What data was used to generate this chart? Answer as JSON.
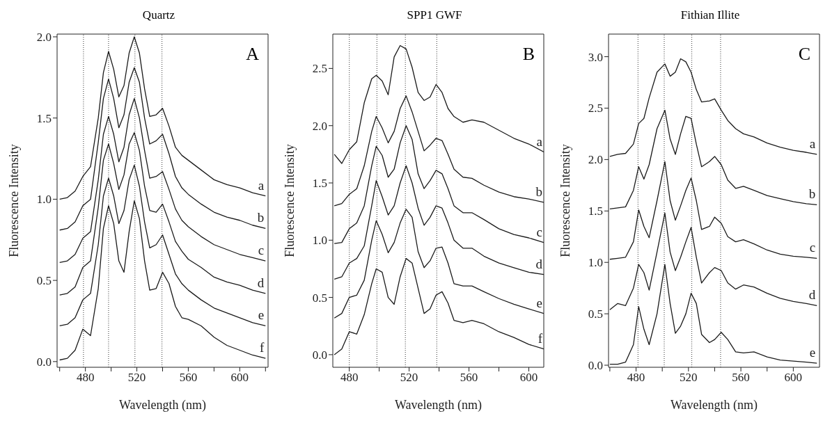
{
  "chart_data": [
    {
      "type": "line",
      "title": "Quartz",
      "xlabel": "Wavelength (nm)",
      "ylabel": "Fluorescence Intensity",
      "annotations": [
        "A"
      ],
      "xlim": [
        458,
        622
      ],
      "xticks": [
        {
          "value": 460,
          "label": null
        },
        480,
        {
          "value": 500,
          "label": null
        },
        520,
        {
          "value": 540,
          "label": null
        },
        560,
        {
          "value": 580,
          "label": null
        },
        600,
        {
          "value": 620,
          "label": null
        }
      ],
      "ylim": [
        -0.035,
        2.017
      ],
      "yticks": [
        {
          "value": 0,
          "label": "0.0"
        },
        {
          "value": 0.5,
          "label": "0.5"
        },
        {
          "value": 1,
          "label": "1.0"
        },
        {
          "value": 1.5,
          "label": "1.5"
        },
        {
          "value": 2,
          "label": "2.0"
        }
      ],
      "ref_lines": [
        {
          "axis": "x",
          "value": 478.5,
          "color": "#555555",
          "line_style": "dotted"
        },
        {
          "axis": "x",
          "value": 498,
          "color": "#555555",
          "line_style": "dotted"
        },
        {
          "axis": "x",
          "value": 518.5,
          "color": "#555555",
          "line_style": "dotted"
        },
        {
          "axis": "x",
          "value": 539.5,
          "color": "#555555",
          "line_style": "dotted"
        }
      ],
      "x": [
        460,
        466,
        472,
        478,
        484,
        490,
        494,
        498,
        502,
        506,
        510,
        514,
        518,
        522,
        526,
        530,
        535,
        540,
        545,
        550,
        555,
        560,
        570,
        580,
        590,
        600,
        610,
        620
      ],
      "series": [
        {
          "name": "a",
          "color": "#1a1a1a",
          "values": [
            1.0,
            1.01,
            1.05,
            1.14,
            1.2,
            1.5,
            1.78,
            1.91,
            1.8,
            1.63,
            1.7,
            1.9,
            2.0,
            1.9,
            1.68,
            1.51,
            1.52,
            1.56,
            1.45,
            1.32,
            1.27,
            1.24,
            1.18,
            1.12,
            1.09,
            1.07,
            1.04,
            1.02
          ]
        },
        {
          "name": "b",
          "color": "#1a1a1a",
          "values": [
            0.81,
            0.82,
            0.86,
            0.96,
            1.0,
            1.35,
            1.62,
            1.74,
            1.62,
            1.44,
            1.52,
            1.72,
            1.81,
            1.72,
            1.5,
            1.34,
            1.36,
            1.4,
            1.28,
            1.14,
            1.07,
            1.03,
            0.97,
            0.92,
            0.89,
            0.87,
            0.84,
            0.82
          ]
        },
        {
          "name": "c",
          "color": "#1a1a1a",
          "values": [
            0.61,
            0.62,
            0.66,
            0.76,
            0.8,
            1.12,
            1.4,
            1.51,
            1.4,
            1.23,
            1.32,
            1.52,
            1.62,
            1.5,
            1.3,
            1.13,
            1.14,
            1.17,
            1.06,
            0.94,
            0.87,
            0.83,
            0.77,
            0.72,
            0.69,
            0.66,
            0.64,
            0.62
          ]
        },
        {
          "name": "d",
          "color": "#1a1a1a",
          "values": [
            0.41,
            0.42,
            0.46,
            0.58,
            0.62,
            0.95,
            1.24,
            1.34,
            1.22,
            1.06,
            1.15,
            1.34,
            1.41,
            1.3,
            1.08,
            0.93,
            0.92,
            0.97,
            0.86,
            0.74,
            0.68,
            0.63,
            0.58,
            0.52,
            0.49,
            0.47,
            0.44,
            0.42
          ]
        },
        {
          "name": "e",
          "color": "#1a1a1a",
          "values": [
            0.22,
            0.23,
            0.27,
            0.38,
            0.42,
            0.72,
            1.02,
            1.13,
            1.02,
            0.85,
            0.93,
            1.12,
            1.21,
            1.08,
            0.86,
            0.7,
            0.72,
            0.78,
            0.66,
            0.54,
            0.48,
            0.44,
            0.38,
            0.33,
            0.3,
            0.27,
            0.24,
            0.22
          ]
        },
        {
          "name": "f",
          "color": "#1a1a1a",
          "values": [
            0.01,
            0.02,
            0.07,
            0.2,
            0.16,
            0.45,
            0.82,
            0.96,
            0.85,
            0.62,
            0.55,
            0.8,
            0.99,
            0.88,
            0.62,
            0.44,
            0.45,
            0.55,
            0.48,
            0.34,
            0.27,
            0.26,
            0.22,
            0.15,
            0.1,
            0.07,
            0.04,
            0.02
          ]
        }
      ]
    },
    {
      "type": "line",
      "title": "SPP1 GWF",
      "xlabel": "Wavelength (nm)",
      "ylabel": "Fluorescence Intensity",
      "annotations": [
        "B"
      ],
      "xlim": [
        469,
        610
      ],
      "xticks": [
        480,
        {
          "value": 500,
          "label": null
        },
        520,
        {
          "value": 540,
          "label": null
        },
        560,
        {
          "value": 580,
          "label": null
        },
        600
      ],
      "ylim": [
        -0.11,
        2.8
      ],
      "yticks": [
        {
          "value": 0,
          "label": "0.0"
        },
        {
          "value": 0.5,
          "label": "0.5"
        },
        {
          "value": 1,
          "label": "1.0"
        },
        {
          "value": 1.5,
          "label": "1.5"
        },
        {
          "value": 2,
          "label": "2.0"
        },
        {
          "value": 2.5,
          "label": "2.5"
        }
      ],
      "ref_lines": [
        {
          "axis": "x",
          "value": 480,
          "color": "#555555",
          "line_style": "dotted"
        },
        {
          "axis": "x",
          "value": 498.5,
          "color": "#555555",
          "line_style": "dotted"
        },
        {
          "axis": "x",
          "value": 517.5,
          "color": "#555555",
          "line_style": "dotted"
        },
        {
          "axis": "x",
          "value": 538.5,
          "color": "#555555",
          "line_style": "dotted"
        }
      ],
      "x": [
        470,
        475,
        480,
        485,
        490,
        495,
        498,
        502,
        506,
        510,
        514,
        518,
        522,
        526,
        530,
        534,
        538,
        542,
        546,
        550,
        556,
        562,
        570,
        580,
        590,
        600,
        610
      ],
      "series": [
        {
          "name": "a",
          "color": "#1a1a1a",
          "values": [
            1.75,
            1.67,
            1.79,
            1.86,
            2.2,
            2.41,
            2.44,
            2.39,
            2.27,
            2.6,
            2.7,
            2.67,
            2.51,
            2.29,
            2.22,
            2.25,
            2.36,
            2.29,
            2.15,
            2.08,
            2.03,
            2.05,
            2.03,
            1.96,
            1.89,
            1.84,
            1.77
          ]
        },
        {
          "name": "b",
          "color": "#1a1a1a",
          "values": [
            1.3,
            1.32,
            1.4,
            1.45,
            1.65,
            1.95,
            2.08,
            1.98,
            1.85,
            1.95,
            2.15,
            2.26,
            2.12,
            1.95,
            1.78,
            1.83,
            1.89,
            1.87,
            1.75,
            1.62,
            1.55,
            1.54,
            1.48,
            1.42,
            1.38,
            1.36,
            1.33
          ]
        },
        {
          "name": "c",
          "color": "#1a1a1a",
          "values": [
            0.97,
            0.98,
            1.1,
            1.15,
            1.3,
            1.65,
            1.82,
            1.74,
            1.55,
            1.62,
            1.85,
            2.0,
            1.88,
            1.58,
            1.45,
            1.52,
            1.61,
            1.58,
            1.45,
            1.3,
            1.24,
            1.24,
            1.18,
            1.1,
            1.05,
            1.02,
            0.98
          ]
        },
        {
          "name": "d",
          "color": "#1a1a1a",
          "values": [
            0.66,
            0.68,
            0.8,
            0.84,
            0.95,
            1.3,
            1.52,
            1.38,
            1.22,
            1.3,
            1.5,
            1.65,
            1.5,
            1.28,
            1.13,
            1.2,
            1.3,
            1.28,
            1.15,
            1.0,
            0.93,
            0.93,
            0.86,
            0.8,
            0.76,
            0.72,
            0.7
          ]
        },
        {
          "name": "e",
          "color": "#1a1a1a",
          "values": [
            0.32,
            0.36,
            0.5,
            0.52,
            0.65,
            1.0,
            1.17,
            1.05,
            0.89,
            0.98,
            1.15,
            1.27,
            1.2,
            0.9,
            0.76,
            0.82,
            0.93,
            0.94,
            0.8,
            0.62,
            0.6,
            0.6,
            0.55,
            0.49,
            0.44,
            0.4,
            0.36
          ]
        },
        {
          "name": "f",
          "color": "#1a1a1a",
          "values": [
            0.0,
            0.05,
            0.2,
            0.18,
            0.35,
            0.62,
            0.75,
            0.72,
            0.5,
            0.44,
            0.68,
            0.84,
            0.8,
            0.58,
            0.36,
            0.4,
            0.52,
            0.55,
            0.45,
            0.3,
            0.28,
            0.3,
            0.27,
            0.2,
            0.15,
            0.09,
            0.05
          ]
        }
      ]
    },
    {
      "type": "line",
      "title": "Fithian Illite",
      "xlabel": "Wavelength (nm)",
      "ylabel": "Fluorescence Intensity",
      "annotations": [
        "C"
      ],
      "xlim": [
        459,
        620
      ],
      "xticks": [
        {
          "value": 460,
          "label": null
        },
        480,
        {
          "value": 500,
          "label": null
        },
        520,
        {
          "value": 540,
          "label": null
        },
        560,
        {
          "value": 580,
          "label": null
        },
        600
      ],
      "ylim": [
        -0.02,
        3.22
      ],
      "yticks": [
        {
          "value": 0,
          "label": "0.0"
        },
        {
          "value": 0.5,
          "label": "0.5"
        },
        {
          "value": 1,
          "label": "1.0"
        },
        {
          "value": 1.5,
          "label": "1.5"
        },
        {
          "value": 2,
          "label": "2.0"
        },
        {
          "value": 2.5,
          "label": "2.5"
        },
        {
          "value": 3,
          "label": "3.0"
        }
      ],
      "ref_lines": [
        {
          "axis": "x",
          "value": 481.5,
          "color": "#555555",
          "line_style": "dotted"
        },
        {
          "axis": "x",
          "value": 501.5,
          "color": "#555555",
          "line_style": "dotted"
        },
        {
          "axis": "x",
          "value": 522.5,
          "color": "#555555",
          "line_style": "dotted"
        },
        {
          "axis": "x",
          "value": 544.5,
          "color": "#555555",
          "line_style": "dotted"
        }
      ],
      "x": [
        460,
        466,
        472,
        478,
        482,
        486,
        490,
        496,
        502,
        506,
        510,
        514,
        518,
        522,
        526,
        530,
        536,
        540,
        545,
        550,
        556,
        562,
        570,
        580,
        590,
        600,
        610,
        618
      ],
      "series": [
        {
          "name": "a",
          "color": "#1a1a1a",
          "values": [
            2.03,
            2.05,
            2.06,
            2.15,
            2.35,
            2.4,
            2.6,
            2.85,
            2.93,
            2.81,
            2.85,
            2.98,
            2.95,
            2.85,
            2.68,
            2.56,
            2.57,
            2.59,
            2.48,
            2.38,
            2.3,
            2.25,
            2.22,
            2.16,
            2.12,
            2.09,
            2.07,
            2.05
          ]
        },
        {
          "name": "b",
          "color": "#1a1a1a",
          "values": [
            1.52,
            1.53,
            1.54,
            1.7,
            1.93,
            1.81,
            1.95,
            2.3,
            2.48,
            2.2,
            2.05,
            2.25,
            2.42,
            2.4,
            2.15,
            1.93,
            1.98,
            2.03,
            1.95,
            1.8,
            1.72,
            1.74,
            1.7,
            1.65,
            1.62,
            1.59,
            1.57,
            1.56
          ]
        },
        {
          "name": "c",
          "color": "#1a1a1a",
          "values": [
            1.03,
            1.04,
            1.05,
            1.2,
            1.51,
            1.35,
            1.24,
            1.6,
            1.98,
            1.6,
            1.41,
            1.55,
            1.7,
            1.82,
            1.6,
            1.32,
            1.35,
            1.44,
            1.38,
            1.25,
            1.2,
            1.22,
            1.18,
            1.12,
            1.08,
            1.06,
            1.05,
            1.04
          ]
        },
        {
          "name": "d",
          "color": "#1a1a1a",
          "values": [
            0.54,
            0.6,
            0.58,
            0.75,
            0.98,
            0.9,
            0.73,
            1.1,
            1.48,
            1.1,
            0.92,
            1.05,
            1.2,
            1.34,
            1.05,
            0.8,
            0.9,
            0.95,
            0.92,
            0.8,
            0.74,
            0.78,
            0.76,
            0.7,
            0.65,
            0.62,
            0.6,
            0.58
          ]
        },
        {
          "name": "e",
          "color": "#1a1a1a",
          "values": [
            0.01,
            0.01,
            0.03,
            0.2,
            0.57,
            0.35,
            0.2,
            0.5,
            0.98,
            0.6,
            0.31,
            0.38,
            0.5,
            0.7,
            0.6,
            0.3,
            0.22,
            0.25,
            0.32,
            0.25,
            0.13,
            0.12,
            0.13,
            0.08,
            0.05,
            0.04,
            0.03,
            0.02
          ]
        }
      ]
    }
  ]
}
